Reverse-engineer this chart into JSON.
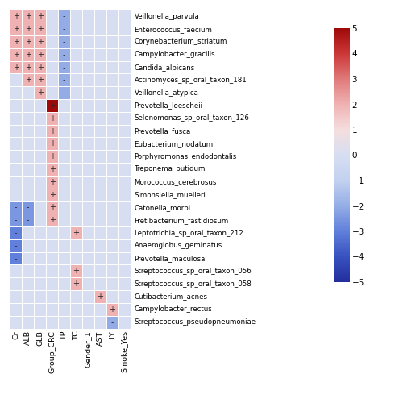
{
  "bacteria": [
    "Veillonella_parvula",
    "Enterococcus_faecium",
    "Corynebacterium_striatum",
    "Campylobacter_gracilis",
    "Candida_albicans",
    "Actinomyces_sp_oral_taxon_181",
    "Veillonella_atypica",
    "Prevotella_loescheii",
    "Selenomonas_sp_oral_taxon_126",
    "Prevotella_fusca",
    "Eubacterium_nodatum",
    "Porphyromonas_endodontalis",
    "Treponema_putidum",
    "Morococcus_cerebrosus",
    "Simonsiella_muelleri",
    "Catonella_morbi",
    "Fretibacterium_fastidiosum",
    "Leptotrichia_sp_oral_taxon_212",
    "Anaeroglobus_geminatus",
    "Prevotella_maculosa",
    "Streptococcus_sp_oral_taxon_056",
    "Streptococcus_sp_oral_taxon_058",
    "Cutibacterium_acnes",
    "Campylobacter_rectus",
    "Streptococcus_pseudopneumoniae"
  ],
  "variables": [
    "Cr",
    "ALB",
    "GLB",
    "Group_CRC",
    "TP",
    "TC",
    "Gender_1",
    "AST",
    "LY",
    "Smoke_Yes"
  ],
  "values": [
    [
      2.0,
      2.0,
      2.0,
      0.0,
      -2.0,
      0.0,
      0.0,
      0.0,
      0.0,
      0.0
    ],
    [
      2.0,
      2.0,
      2.0,
      0.0,
      -2.0,
      0.0,
      0.0,
      0.0,
      0.0,
      0.0
    ],
    [
      2.0,
      2.0,
      2.0,
      0.0,
      -2.0,
      0.0,
      0.0,
      0.0,
      0.0,
      0.0
    ],
    [
      2.0,
      2.0,
      2.0,
      0.0,
      -2.0,
      0.0,
      0.0,
      0.0,
      0.0,
      0.0
    ],
    [
      2.0,
      2.0,
      2.0,
      0.0,
      -2.0,
      0.0,
      0.0,
      0.0,
      0.0,
      0.0
    ],
    [
      0.0,
      2.0,
      2.0,
      0.0,
      -2.0,
      0.0,
      0.0,
      0.0,
      0.0,
      0.0
    ],
    [
      0.0,
      0.0,
      2.0,
      0.0,
      -2.0,
      0.0,
      0.0,
      0.0,
      0.0,
      0.0
    ],
    [
      0.0,
      0.0,
      0.0,
      5.0,
      0.0,
      0.0,
      0.0,
      0.0,
      0.0,
      0.0
    ],
    [
      0.0,
      0.0,
      0.0,
      2.0,
      0.0,
      0.0,
      0.0,
      0.0,
      0.0,
      0.0
    ],
    [
      0.0,
      0.0,
      0.0,
      2.0,
      0.0,
      0.0,
      0.0,
      0.0,
      0.0,
      0.0
    ],
    [
      0.0,
      0.0,
      0.0,
      2.0,
      0.0,
      0.0,
      0.0,
      0.0,
      0.0,
      0.0
    ],
    [
      0.0,
      0.0,
      0.0,
      2.0,
      0.0,
      0.0,
      0.0,
      0.0,
      0.0,
      0.0
    ],
    [
      0.0,
      0.0,
      0.0,
      2.0,
      0.0,
      0.0,
      0.0,
      0.0,
      0.0,
      0.0
    ],
    [
      0.0,
      0.0,
      0.0,
      2.0,
      0.0,
      0.0,
      0.0,
      0.0,
      0.0,
      0.0
    ],
    [
      0.0,
      0.0,
      0.0,
      2.0,
      0.0,
      0.0,
      0.0,
      0.0,
      0.0,
      0.0
    ],
    [
      -2.5,
      -2.5,
      0.0,
      2.0,
      0.0,
      0.0,
      0.0,
      0.0,
      0.0,
      0.0
    ],
    [
      -2.5,
      -2.5,
      0.0,
      2.0,
      0.0,
      0.0,
      0.0,
      0.0,
      0.0,
      0.0
    ],
    [
      -3.0,
      0.0,
      0.0,
      0.0,
      0.0,
      2.0,
      0.0,
      0.0,
      0.0,
      0.0
    ],
    [
      -3.0,
      0.0,
      0.0,
      0.0,
      0.0,
      0.0,
      0.0,
      0.0,
      0.0,
      0.0
    ],
    [
      -3.0,
      0.0,
      0.0,
      0.0,
      0.0,
      0.0,
      0.0,
      0.0,
      0.0,
      0.0
    ],
    [
      0.0,
      0.0,
      0.0,
      0.0,
      0.0,
      2.0,
      0.0,
      0.0,
      0.0,
      0.0
    ],
    [
      0.0,
      0.0,
      0.0,
      0.0,
      0.0,
      2.0,
      0.0,
      0.0,
      0.0,
      0.0
    ],
    [
      0.0,
      0.0,
      0.0,
      0.0,
      0.0,
      0.0,
      0.0,
      2.0,
      0.0,
      0.0
    ],
    [
      0.0,
      0.0,
      0.0,
      0.0,
      0.0,
      0.0,
      0.0,
      0.0,
      2.0,
      0.0
    ],
    [
      0.0,
      0.0,
      0.0,
      0.0,
      0.0,
      0.0,
      0.0,
      0.0,
      -2.0,
      0.0
    ]
  ],
  "signs": [
    [
      "+",
      "+",
      "+",
      "",
      "-",
      "",
      "",
      "",
      "",
      ""
    ],
    [
      "+",
      "+",
      "+",
      "",
      "-",
      "",
      "",
      "",
      "",
      ""
    ],
    [
      "+",
      "+",
      "+",
      "",
      "-",
      "",
      "",
      "",
      "",
      ""
    ],
    [
      "+",
      "+",
      "+",
      "",
      "-",
      "",
      "",
      "",
      "",
      ""
    ],
    [
      "+",
      "+",
      "+",
      "",
      "-",
      "",
      "",
      "",
      "",
      ""
    ],
    [
      "",
      "+",
      "+",
      "",
      "-",
      "",
      "",
      "",
      "",
      ""
    ],
    [
      "",
      "",
      "+",
      "",
      "-",
      "",
      "",
      "",
      "",
      ""
    ],
    [
      "",
      "",
      "",
      "+",
      "",
      "",
      "",
      "",
      "",
      ""
    ],
    [
      "",
      "",
      "",
      "+",
      "",
      "",
      "",
      "",
      "",
      ""
    ],
    [
      "",
      "",
      "",
      "+",
      "",
      "",
      "",
      "",
      "",
      ""
    ],
    [
      "",
      "",
      "",
      "+",
      "",
      "",
      "",
      "",
      "",
      ""
    ],
    [
      "",
      "",
      "",
      "+",
      "",
      "",
      "",
      "",
      "",
      ""
    ],
    [
      "",
      "",
      "",
      "+",
      "",
      "",
      "",
      "",
      "",
      ""
    ],
    [
      "",
      "",
      "",
      "+",
      "",
      "",
      "",
      "",
      "",
      ""
    ],
    [
      "",
      "",
      "",
      "+",
      "",
      "",
      "",
      "",
      "",
      ""
    ],
    [
      "-",
      "-",
      "",
      "+",
      "",
      "",
      "",
      "",
      "",
      ""
    ],
    [
      "-",
      "-",
      "",
      "+",
      "",
      "",
      "",
      "",
      "",
      ""
    ],
    [
      "-",
      "",
      "",
      "",
      "",
      "+",
      "",
      "",
      "",
      ""
    ],
    [
      "-",
      "",
      "",
      "",
      "",
      "",
      "",
      "",
      "",
      ""
    ],
    [
      "-",
      "",
      "",
      "",
      "",
      "",
      "",
      "",
      "",
      ""
    ],
    [
      "",
      "",
      "",
      "",
      "",
      "+",
      "",
      "",
      "",
      ""
    ],
    [
      "",
      "",
      "",
      "",
      "",
      "+",
      "",
      "",
      "",
      ""
    ],
    [
      "",
      "",
      "",
      "",
      "",
      "",
      "",
      "+",
      "",
      ""
    ],
    [
      "",
      "",
      "",
      "",
      "",
      "",
      "",
      "",
      "+",
      ""
    ],
    [
      "",
      "",
      "",
      "",
      "",
      "",
      "",
      "",
      "-",
      ""
    ]
  ],
  "vmin": -5,
  "vmax": 5,
  "colorbar_ticks": [
    5,
    4,
    3,
    2,
    1,
    0,
    -1,
    -2,
    -3,
    -4,
    -5
  ]
}
